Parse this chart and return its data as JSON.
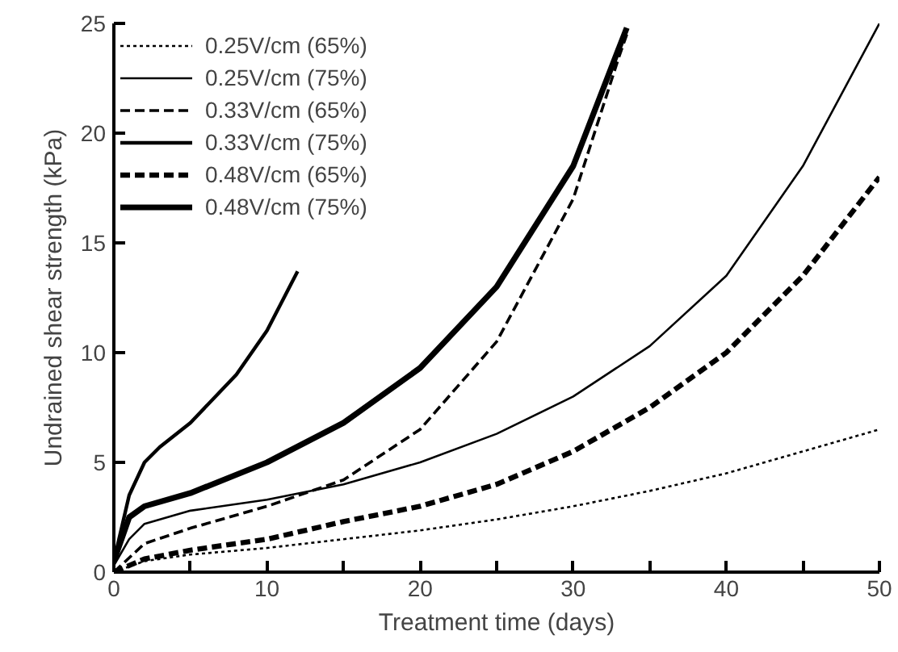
{
  "chart_data": {
    "type": "line",
    "xlabel": "Treatment time (days)",
    "ylabel": "Undrained shear strength (kPa)",
    "xlim": [
      0,
      50
    ],
    "ylim": [
      0,
      25
    ],
    "xticks": [
      0,
      {
        "value": 5,
        "label": null
      },
      10,
      {
        "value": 15,
        "label": null
      },
      20,
      {
        "value": 25,
        "label": null
      },
      30,
      {
        "value": 35,
        "label": null
      },
      40,
      {
        "value": 45,
        "label": null
      },
      50
    ],
    "yticks": [
      0,
      5,
      10,
      15,
      20,
      25
    ],
    "grid": false,
    "legend": "top left",
    "marker": "none",
    "series": [
      {
        "name": "0.25V/cm (65%)",
        "color": "#000000",
        "line_style": "dotted",
        "x": [
          0,
          2,
          5,
          10,
          15,
          20,
          25,
          30,
          35,
          40,
          45,
          50
        ],
        "values": [
          0,
          0.5,
          0.8,
          1.1,
          1.5,
          1.9,
          2.4,
          3.0,
          3.7,
          4.5,
          5.5,
          6.5
        ]
      },
      {
        "name": "0.25V/cm (75%)",
        "color": "#000000",
        "line_style": "solid",
        "x": [
          0,
          1,
          2,
          5,
          10,
          15,
          20,
          25,
          30,
          35,
          40,
          45,
          50
        ],
        "values": [
          0.3,
          1.5,
          2.2,
          2.8,
          3.3,
          4.0,
          5.0,
          6.3,
          8.0,
          10.3,
          13.5,
          18.5,
          25
        ]
      },
      {
        "name": "0.33V/cm (65%)",
        "color": "#000000",
        "line_style": "dashed",
        "x": [
          0,
          2,
          5,
          10,
          15,
          20,
          25,
          30,
          33,
          33.5
        ],
        "values": [
          0,
          1.3,
          2.0,
          3.0,
          4.2,
          6.5,
          10.5,
          17,
          23.5,
          24.5
        ]
      },
      {
        "name": "0.33V/cm (75%)",
        "color": "#000000",
        "line_style": "solid",
        "x": [
          0,
          1,
          2,
          3,
          5,
          8,
          10,
          12
        ],
        "values": [
          0.5,
          3.5,
          5.0,
          5.7,
          6.8,
          9.0,
          11.0,
          13.7
        ]
      },
      {
        "name": "0.48V/cm (65%)",
        "color": "#000000",
        "line_style": "dashed",
        "x": [
          0,
          2,
          5,
          10,
          15,
          20,
          25,
          30,
          35,
          40,
          45,
          50
        ],
        "values": [
          0,
          0.6,
          1.0,
          1.5,
          2.3,
          3.0,
          4.0,
          5.5,
          7.5,
          10,
          13.5,
          18
        ]
      },
      {
        "name": "0.48V/cm (75%)",
        "color": "#000000",
        "line_style": "solid",
        "x": [
          0,
          1,
          2,
          5,
          10,
          15,
          20,
          25,
          30,
          33.5
        ],
        "values": [
          0.5,
          2.5,
          3.0,
          3.6,
          5.0,
          6.8,
          9.3,
          13.0,
          18.5,
          24.8
        ]
      }
    ]
  }
}
